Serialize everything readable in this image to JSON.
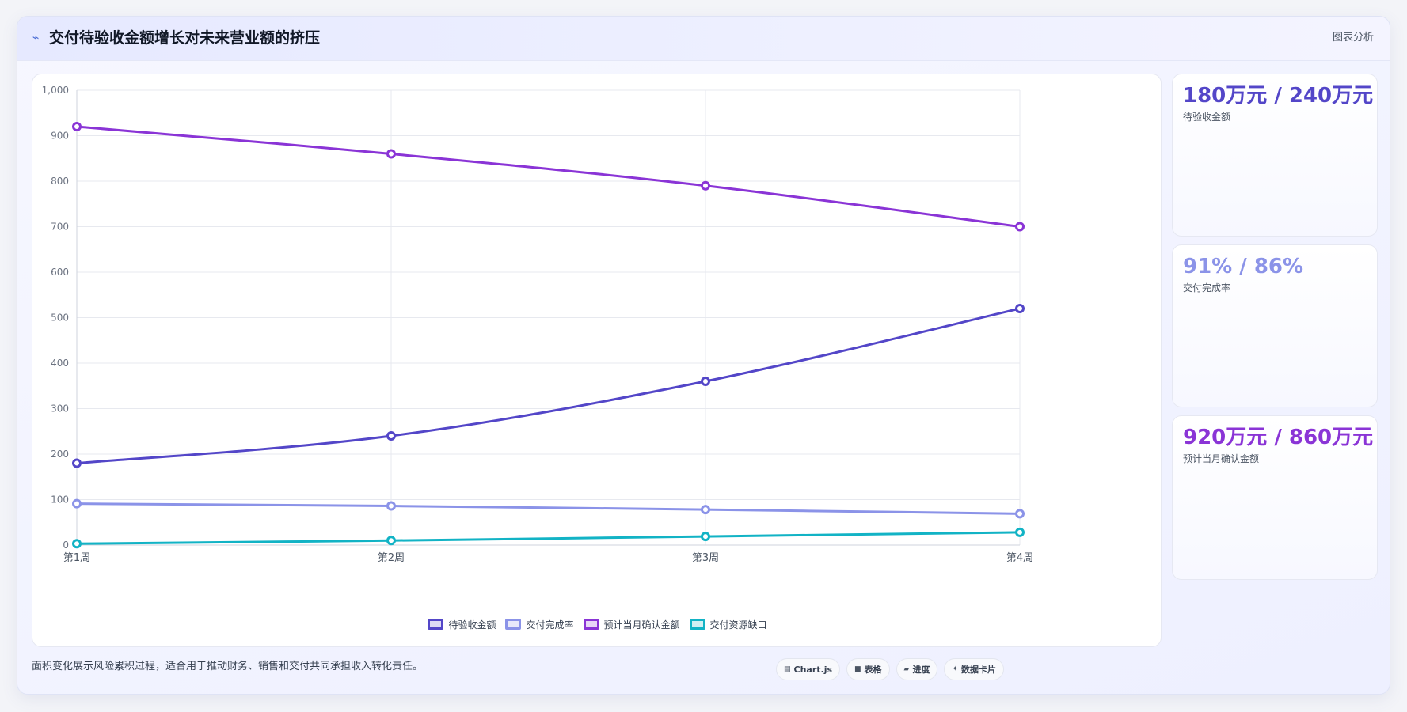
{
  "header": {
    "title_icon": "trend-icon",
    "title": "交付待验收金额增长对未来营业额的挤压",
    "action_label": "图表分析"
  },
  "chart_data": {
    "type": "line",
    "x": [
      "第1周",
      "第2周",
      "第3周",
      "第4周"
    ],
    "ylim": [
      0,
      1000
    ],
    "yticks": [
      0,
      100,
      200,
      300,
      400,
      500,
      600,
      700,
      800,
      900,
      1000
    ],
    "ytick_labels": [
      "0",
      "100",
      "200",
      "300",
      "400",
      "500",
      "600",
      "700",
      "800",
      "900",
      "1,000"
    ],
    "grid": true,
    "legend_position": "bottom",
    "series": [
      {
        "name": "待验收金额",
        "values": [
          180,
          240,
          360,
          520
        ],
        "color": "#5346c8"
      },
      {
        "name": "交付完成率",
        "values": [
          91,
          86,
          78,
          69
        ],
        "color": "#8b93e8"
      },
      {
        "name": "预计当月确认金额",
        "values": [
          920,
          860,
          790,
          700
        ],
        "color": "#8a34d6"
      },
      {
        "name": "交付资源缺口",
        "values": [
          3,
          10,
          19,
          28
        ],
        "color": "#12b3c5"
      }
    ]
  },
  "stats": [
    {
      "value": "180万元 / 240万元",
      "label": "待验收金额",
      "color": "#5346c8"
    },
    {
      "value": "91% / 86%",
      "label": "交付完成率",
      "color": "#8b93e8"
    },
    {
      "value": "920万元 / 860万元",
      "label": "预计当月确认金额",
      "color": "#8a34d6"
    }
  ],
  "footer": {
    "note": "面积变化展示风险累积过程，适合用于推动财务、销售和交付共同承担收入转化责任。",
    "chips": [
      {
        "icon": "chart-icon",
        "glyph": "▤",
        "label": "Chart.js"
      },
      {
        "icon": "table-icon",
        "glyph": "■",
        "label": "表格"
      },
      {
        "icon": "progress-icon",
        "glyph": "▰",
        "label": "进度"
      },
      {
        "icon": "card-icon",
        "glyph": "✦",
        "label": "数据卡片"
      }
    ]
  }
}
